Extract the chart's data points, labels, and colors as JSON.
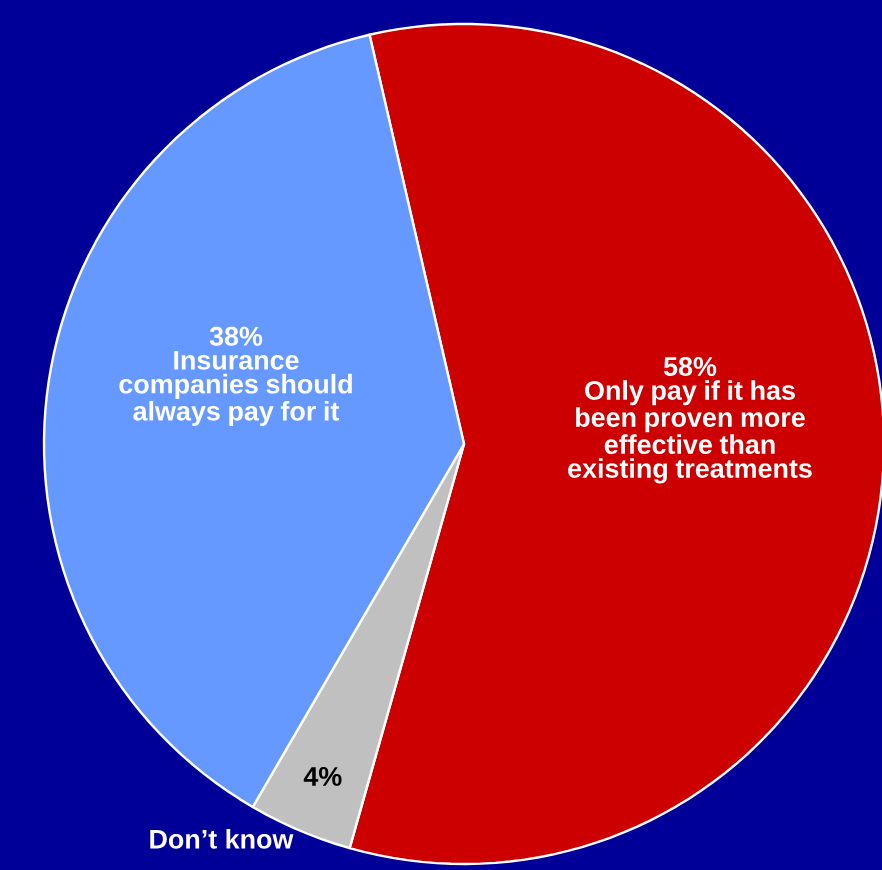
{
  "chart_data": {
    "type": "pie",
    "categories": [
      "Only pay if it has been proven more effective than existing treatments",
      "Don’t know",
      "Insurance companies should always pay for it"
    ],
    "values": [
      58,
      4,
      38
    ],
    "value_labels": [
      "58%",
      "4%",
      "38%"
    ],
    "colors": [
      "#cc0000",
      "#c0c0c0",
      "#6699ff"
    ]
  }
}
